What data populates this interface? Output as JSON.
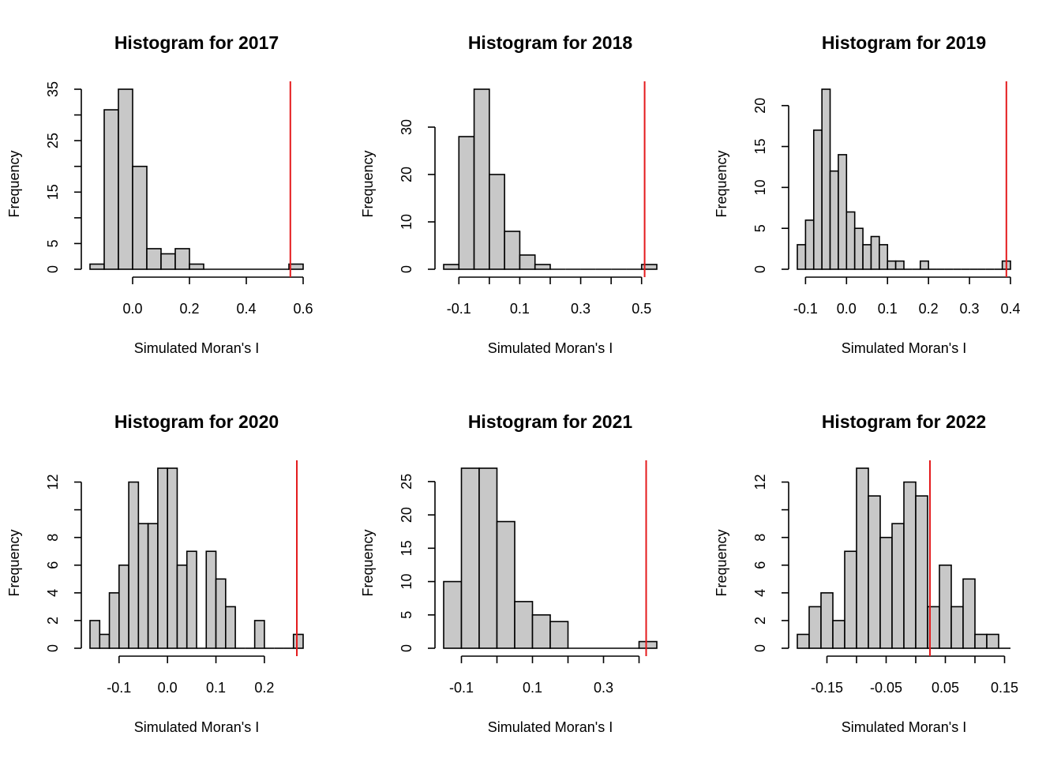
{
  "chart_data": [
    {
      "type": "histogram",
      "title": "Histogram for 2017",
      "xlabel": "Simulated Moran's I",
      "ylabel": "Frequency",
      "bin_edges": [
        -0.15,
        -0.1,
        -0.05,
        0.0,
        0.05,
        0.1,
        0.15,
        0.2,
        0.25,
        0.3,
        0.35,
        0.4,
        0.45,
        0.5,
        0.55,
        0.6
      ],
      "counts": [
        1,
        31,
        35,
        20,
        4,
        3,
        4,
        1,
        0,
        0,
        0,
        0,
        0,
        0,
        1
      ],
      "xlim": [
        -0.15,
        0.6
      ],
      "ylim": [
        0,
        35
      ],
      "x_ticks": [
        0.0,
        0.2,
        0.4,
        0.6
      ],
      "x_tick_labels": [
        "0.0",
        "0.2",
        "0.4",
        "0.6"
      ],
      "y_ticks": [
        0,
        5,
        10,
        15,
        20,
        25,
        30,
        35
      ],
      "y_tick_labels": [
        "0",
        "5",
        "",
        "15",
        "",
        "25",
        "",
        "35"
      ],
      "ref_line_x": 0.555,
      "ref_line_color": "#e41a1c"
    },
    {
      "type": "histogram",
      "title": "Histogram for 2018",
      "xlabel": "Simulated Moran's I",
      "ylabel": "Frequency",
      "bin_edges": [
        -0.15,
        -0.1,
        -0.05,
        0.0,
        0.05,
        0.1,
        0.15,
        0.2,
        0.25,
        0.3,
        0.35,
        0.4,
        0.45,
        0.5,
        0.55
      ],
      "counts": [
        1,
        28,
        38,
        20,
        8,
        3,
        1,
        0,
        0,
        0,
        0,
        0,
        0,
        1
      ],
      "xlim": [
        -0.15,
        0.55
      ],
      "ylim": [
        0,
        38
      ],
      "x_ticks": [
        -0.1,
        0.1,
        0.3,
        0.5
      ],
      "x_tick_labels": [
        "-0.1",
        "0.1",
        "0.3",
        "0.5"
      ],
      "extra_x_ticks": [
        0.0,
        0.2,
        0.4
      ],
      "y_ticks": [
        0,
        10,
        20,
        30
      ],
      "y_tick_labels": [
        "0",
        "10",
        "20",
        "30"
      ],
      "ref_line_x": 0.51,
      "ref_line_color": "#e41a1c"
    },
    {
      "type": "histogram",
      "title": "Histogram for 2019",
      "xlabel": "Simulated Moran's I",
      "ylabel": "Frequency",
      "bin_edges": [
        -0.12,
        -0.1,
        -0.08,
        -0.06,
        -0.04,
        -0.02,
        0.0,
        0.02,
        0.04,
        0.06,
        0.08,
        0.1,
        0.12,
        0.14,
        0.16,
        0.18,
        0.2,
        0.22,
        0.24,
        0.26,
        0.28,
        0.3,
        0.32,
        0.34,
        0.36,
        0.38,
        0.4
      ],
      "counts": [
        3,
        6,
        17,
        22,
        12,
        14,
        7,
        5,
        3,
        4,
        3,
        1,
        1,
        0,
        0,
        1,
        0,
        0,
        0,
        0,
        0,
        0,
        0,
        0,
        0,
        1
      ],
      "xlim": [
        -0.12,
        0.4
      ],
      "ylim": [
        0,
        22
      ],
      "x_ticks": [
        -0.1,
        0.0,
        0.1,
        0.2,
        0.3,
        0.4
      ],
      "x_tick_labels": [
        "-0.1",
        "0.0",
        "0.1",
        "0.2",
        "0.3",
        "0.4"
      ],
      "y_ticks": [
        0,
        5,
        10,
        15,
        20
      ],
      "y_tick_labels": [
        "0",
        "5",
        "10",
        "15",
        "20"
      ],
      "ref_line_x": 0.39,
      "ref_line_color": "#e41a1c"
    },
    {
      "type": "histogram",
      "title": "Histogram for 2020",
      "xlabel": "Simulated Moran's I",
      "ylabel": "Frequency",
      "bin_edges": [
        -0.16,
        -0.14,
        -0.12,
        -0.1,
        -0.08,
        -0.06,
        -0.04,
        -0.02,
        0.0,
        0.02,
        0.04,
        0.06,
        0.08,
        0.1,
        0.12,
        0.14,
        0.16,
        0.18,
        0.2,
        0.22,
        0.24,
        0.26,
        0.28
      ],
      "counts": [
        2,
        1,
        4,
        6,
        12,
        9,
        9,
        13,
        13,
        6,
        7,
        0,
        7,
        5,
        3,
        0,
        0,
        2,
        0,
        0,
        0,
        1
      ],
      "xlim": [
        -0.16,
        0.28
      ],
      "ylim": [
        0,
        13
      ],
      "x_ticks": [
        -0.1,
        0.0,
        0.1,
        0.2
      ],
      "x_tick_labels": [
        "-0.1",
        "0.0",
        "0.1",
        "0.2"
      ],
      "y_ticks": [
        0,
        2,
        4,
        6,
        8,
        10,
        12
      ],
      "y_tick_labels": [
        "0",
        "2",
        "4",
        "6",
        "8",
        "",
        "12"
      ],
      "ref_line_x": 0.267,
      "ref_line_color": "#e41a1c"
    },
    {
      "type": "histogram",
      "title": "Histogram for 2021",
      "xlabel": "Simulated Moran's I",
      "ylabel": "Frequency",
      "bin_edges": [
        -0.15,
        -0.1,
        -0.05,
        0.0,
        0.05,
        0.1,
        0.15,
        0.2,
        0.25,
        0.3,
        0.35,
        0.4,
        0.45
      ],
      "counts": [
        10,
        27,
        27,
        19,
        7,
        5,
        4,
        0,
        0,
        0,
        0,
        1
      ],
      "xlim": [
        -0.15,
        0.45
      ],
      "ylim": [
        0,
        27
      ],
      "x_ticks": [
        -0.1,
        0.1,
        0.3
      ],
      "x_tick_labels": [
        "-0.1",
        "0.1",
        "0.3"
      ],
      "extra_x_ticks": [
        0.0,
        0.2,
        0.4
      ],
      "y_ticks": [
        0,
        5,
        10,
        15,
        20,
        25
      ],
      "y_tick_labels": [
        "0",
        "5",
        "10",
        "15",
        "20",
        "25"
      ],
      "ref_line_x": 0.42,
      "ref_line_color": "#e41a1c"
    },
    {
      "type": "histogram",
      "title": "Histogram for 2022",
      "xlabel": "Simulated Moran's I",
      "ylabel": "Frequency",
      "bin_edges": [
        -0.2,
        -0.18,
        -0.16,
        -0.14,
        -0.12,
        -0.1,
        -0.08,
        -0.06,
        -0.04,
        -0.02,
        0.0,
        0.02,
        0.04,
        0.06,
        0.08,
        0.1,
        0.12,
        0.14,
        0.16
      ],
      "counts": [
        1,
        3,
        4,
        2,
        7,
        13,
        11,
        8,
        9,
        12,
        11,
        3,
        6,
        3,
        5,
        1,
        1,
        0
      ],
      "xlim": [
        -0.2,
        0.16
      ],
      "ylim": [
        0,
        13
      ],
      "x_ticks": [
        -0.15,
        -0.05,
        0.05,
        0.15
      ],
      "x_tick_labels": [
        "-0.15",
        "-0.05",
        "0.05",
        "0.15"
      ],
      "extra_x_ticks": [
        -0.1,
        0.0,
        0.1
      ],
      "y_ticks": [
        0,
        2,
        4,
        6,
        8,
        10,
        12
      ],
      "y_tick_labels": [
        "0",
        "2",
        "4",
        "6",
        "8",
        "",
        "12"
      ],
      "ref_line_x": 0.024,
      "ref_line_color": "#e41a1c"
    }
  ]
}
